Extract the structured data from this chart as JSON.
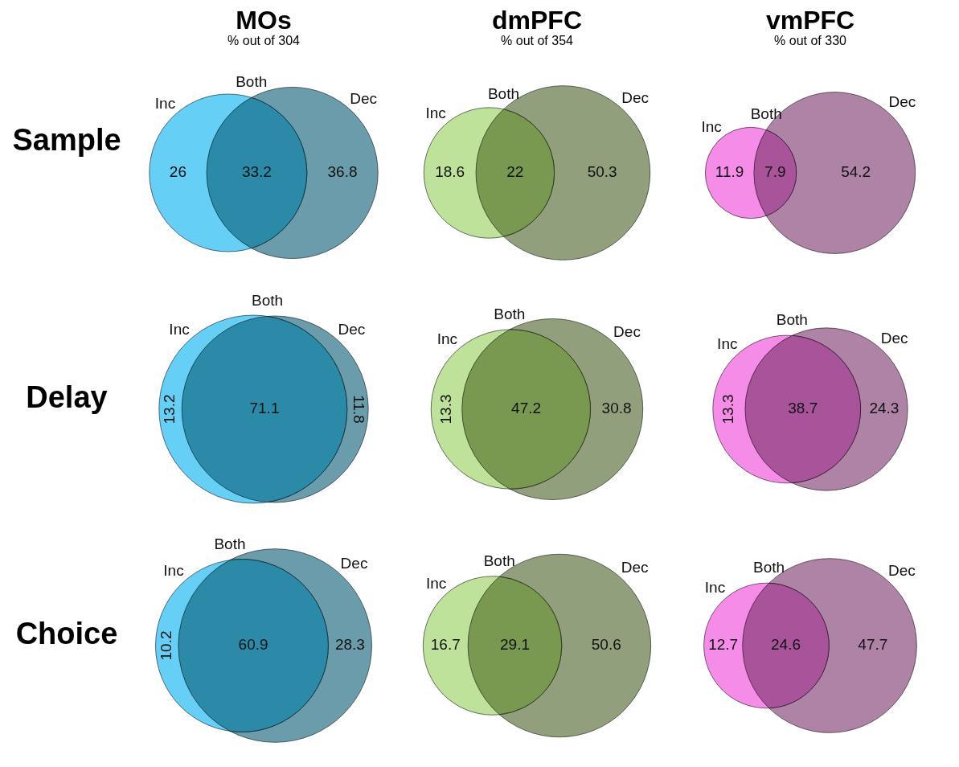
{
  "chart_data": [
    {
      "type": "other",
      "title": "MOs",
      "subtitle": "% out of 304",
      "ylabel": "Sample",
      "categories": [
        "Inc",
        "Both",
        "Dec"
      ],
      "values": [
        26,
        33.2,
        36.8
      ],
      "data_labels": true,
      "colors": [
        "#66cff6",
        "#2a8aa8",
        "#6a9cab"
      ]
    },
    {
      "type": "other",
      "title": "dmPFC",
      "subtitle": "% out of 354",
      "categories": [
        "Inc",
        "Both",
        "Dec"
      ],
      "values": [
        18.6,
        22,
        50.3
      ],
      "data_labels": true,
      "colors": [
        "#bfe29a",
        "#78994f",
        "#929f7c"
      ]
    },
    {
      "type": "other",
      "title": "vmPFC",
      "subtitle": "% out of 330",
      "categories": [
        "Inc",
        "Both",
        "Dec"
      ],
      "values": [
        11.9,
        7.9,
        54.2
      ],
      "data_labels": true,
      "colors": [
        "#f58ce8",
        "#a9539b",
        "#ae83a6"
      ]
    },
    {
      "type": "other",
      "ylabel": "Delay",
      "categories": [
        "Inc",
        "Both",
        "Dec"
      ],
      "values": [
        13.2,
        71.1,
        11.8
      ],
      "data_labels": true,
      "colors": [
        "#66cff6",
        "#2a8aa8",
        "#6a9cab"
      ]
    },
    {
      "type": "other",
      "categories": [
        "Inc",
        "Both",
        "Dec"
      ],
      "values": [
        13.3,
        47.2,
        30.8
      ],
      "data_labels": true,
      "colors": [
        "#bfe29a",
        "#78994f",
        "#929f7c"
      ]
    },
    {
      "type": "other",
      "categories": [
        "Inc",
        "Both",
        "Dec"
      ],
      "values": [
        13.3,
        38.7,
        24.3
      ],
      "data_labels": true,
      "colors": [
        "#f58ce8",
        "#a9539b",
        "#ae83a6"
      ]
    },
    {
      "type": "other",
      "ylabel": "Choice",
      "categories": [
        "Inc",
        "Both",
        "Dec"
      ],
      "values": [
        10.2,
        60.9,
        28.3
      ],
      "data_labels": true,
      "colors": [
        "#66cff6",
        "#2a8aa8",
        "#6a9cab"
      ]
    },
    {
      "type": "other",
      "categories": [
        "Inc",
        "Both",
        "Dec"
      ],
      "values": [
        16.7,
        29.1,
        50.6
      ],
      "data_labels": true,
      "colors": [
        "#bfe29a",
        "#78994f",
        "#929f7c"
      ]
    },
    {
      "type": "other",
      "categories": [
        "Inc",
        "Both",
        "Dec"
      ],
      "values": [
        12.7,
        24.6,
        47.7
      ],
      "data_labels": true,
      "colors": [
        "#f58ce8",
        "#a9539b",
        "#ae83a6"
      ]
    }
  ]
}
